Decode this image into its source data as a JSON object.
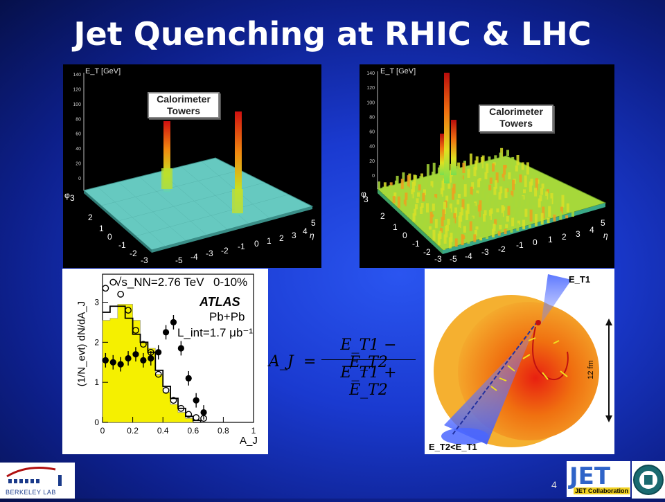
{
  "title": "Jet Quenching at RHIC & LHC",
  "panel_rhic": {
    "axis_label": "E_T [GeV]",
    "box_line1": "Calorimeter",
    "box_line2": "Towers",
    "z_ticks": [
      "140",
      "120",
      "100",
      "80",
      "60",
      "40",
      "20",
      "0"
    ],
    "eta_ticks": [
      "-5",
      "-4",
      "-3",
      "-2",
      "-1",
      "0",
      "1",
      "2",
      "3",
      "4",
      "5"
    ],
    "eta_label": "η",
    "phi_ticks": [
      "3",
      "2",
      "1",
      "0",
      "-1",
      "-2",
      "-3"
    ],
    "phi_label": "φ"
  },
  "panel_lhc": {
    "axis_label": "E_T [GeV]",
    "box_line1": "Calorimeter",
    "box_line2": "Towers",
    "z_ticks": [
      "140",
      "120",
      "100",
      "80",
      "60",
      "40",
      "20",
      "0"
    ],
    "eta_ticks": [
      "-5",
      "-4",
      "-3",
      "-2",
      "-1",
      "0",
      "1",
      "2",
      "3",
      "4",
      "5"
    ],
    "eta_label": "η",
    "phi_ticks": [
      "3",
      "2",
      "1",
      "0",
      "-1",
      "-2",
      "-3"
    ],
    "phi_label": "φ"
  },
  "atlas_plot": {
    "ylabel": "(1/N_evt) dN/dA_J",
    "energy": "√s_NN=2.76 TeV",
    "centrality": "0-10%",
    "experiment": "ATLAS",
    "system": "Pb+Pb",
    "lumi": "L_int=1.7 μb⁻¹",
    "xlabel": "A_J",
    "x_ticks": [
      "0",
      "0.2",
      "0.4",
      "0.6",
      "0.8",
      "1"
    ],
    "y_ticks": [
      "0",
      "1",
      "2",
      "3"
    ]
  },
  "chart_data": {
    "type": "scatter",
    "xlabel": "A_J",
    "ylabel": "(1/N_evt) dN/dA_J",
    "xlim": [
      0,
      1
    ],
    "ylim": [
      0,
      3.7
    ],
    "series": [
      {
        "name": "",
        "style": "filled-points",
        "x": [
          0.02,
          0.07,
          0.12,
          0.17,
          0.22,
          0.27,
          0.32,
          0.37,
          0.42,
          0.47,
          0.52,
          0.57,
          0.62,
          0.67
        ],
        "y": [
          1.55,
          1.5,
          1.45,
          1.6,
          1.7,
          1.55,
          1.6,
          1.75,
          2.25,
          2.5,
          1.85,
          1.1,
          0.55,
          0.25
        ]
      },
      {
        "name": "",
        "style": "open-points",
        "x": [
          0.02,
          0.07,
          0.12,
          0.17,
          0.22,
          0.27,
          0.32,
          0.37,
          0.42,
          0.47,
          0.52,
          0.57,
          0.62,
          0.67
        ],
        "y": [
          3.35,
          3.5,
          3.2,
          2.8,
          2.3,
          1.95,
          1.75,
          1.2,
          0.8,
          0.55,
          0.35,
          0.2,
          0.12,
          0.1
        ]
      },
      {
        "name": "",
        "style": "yellow-filled-histogram",
        "x": [
          0.025,
          0.075,
          0.125,
          0.175,
          0.225,
          0.275,
          0.325,
          0.375,
          0.425,
          0.475,
          0.525,
          0.575
        ],
        "y": [
          2.55,
          2.6,
          2.95,
          2.95,
          2.55,
          2.0,
          1.85,
          1.2,
          0.75,
          0.45,
          0.25,
          0.1
        ]
      },
      {
        "name": "",
        "style": "black-step-histogram",
        "x": [
          0.025,
          0.075,
          0.125,
          0.175,
          0.225,
          0.275,
          0.325,
          0.375,
          0.425,
          0.475,
          0.525,
          0.575,
          0.625
        ],
        "y": [
          2.75,
          2.9,
          2.9,
          2.6,
          2.2,
          2.0,
          1.75,
          1.3,
          0.9,
          0.6,
          0.35,
          0.15,
          0.05
        ]
      }
    ]
  },
  "formula": {
    "lhs": "A_J",
    "num": "E_T1 − E_T2",
    "den": "E_T1 + E_T2"
  },
  "diagram": {
    "et1": "E_T1",
    "et2": "E_T2<E_T1",
    "size": "12 fm"
  },
  "page_number": "4",
  "logos": {
    "left": "BERKELEY LAB",
    "right": "JET Collaboration"
  }
}
